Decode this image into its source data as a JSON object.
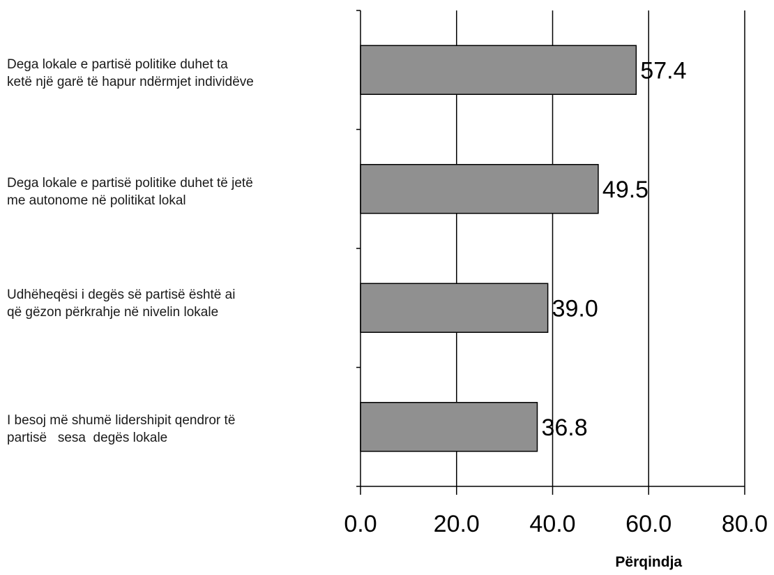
{
  "chart_data": {
    "type": "bar",
    "orientation": "horizontal",
    "categories": [
      "Dega lokale e partisë politike duhet ta\nketë një garë të hapur ndërmjet individëve",
      "Dega lokale e partisë politike duhet të jetë\nme autonome në politikat lokal",
      "Udhëheqësi i degës së partisë është ai\nqë gëzon përkrahje në nivelin lokale",
      "I besoj më shumë lidershipit qendror të\npartisë   sesa  degës lokale"
    ],
    "values": [
      57.4,
      49.5,
      39.0,
      36.8
    ],
    "value_labels": [
      "57.4",
      "49.5",
      "39.0",
      "36.8"
    ],
    "xlabel": "Përqindja",
    "xlim": [
      0,
      80
    ],
    "xticks": [
      0,
      20,
      40,
      60,
      80
    ],
    "xtick_labels": [
      "0.0",
      "20.0",
      "40.0",
      "60.0",
      "80.0"
    ],
    "grid": true,
    "bar_color": "#909090",
    "bar_edge_color": "#000000"
  }
}
